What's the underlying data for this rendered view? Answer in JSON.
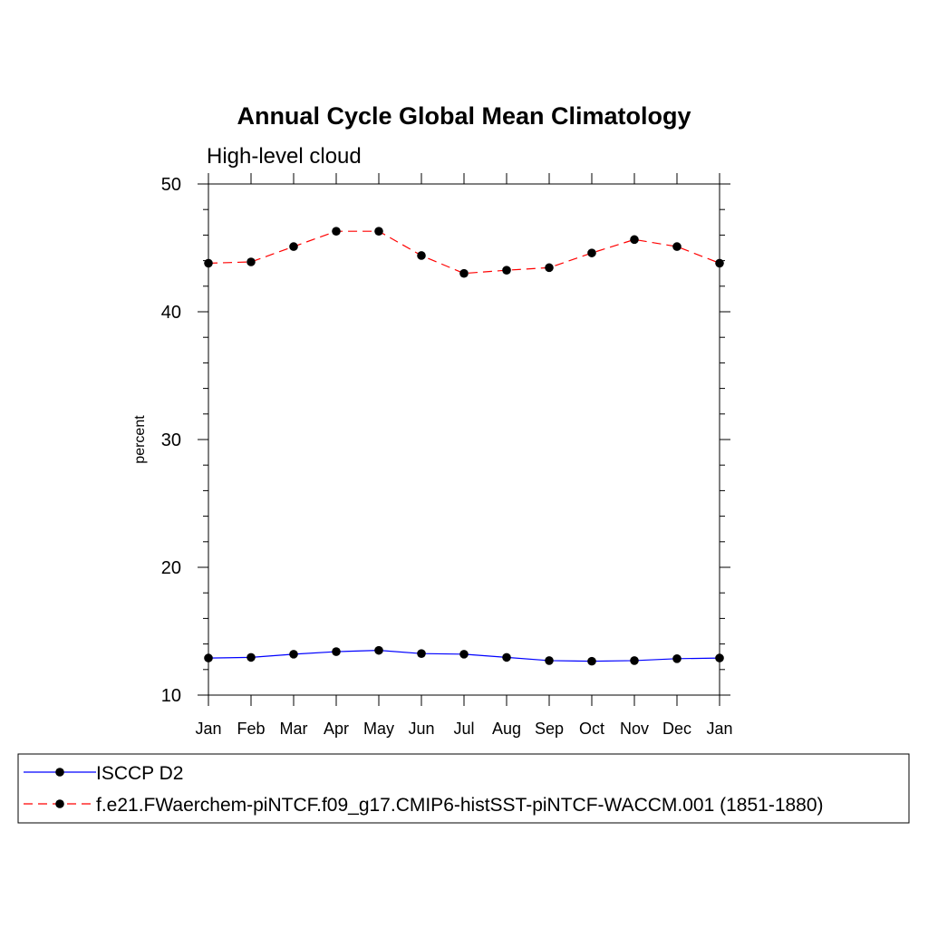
{
  "chart_data": {
    "type": "line",
    "title": "Annual Cycle Global Mean Climatology",
    "subtitle": "High-level cloud",
    "xlabel": "",
    "ylabel": "percent",
    "ylim": [
      10,
      50
    ],
    "yticks": [
      10,
      20,
      30,
      40,
      50
    ],
    "categories": [
      "Jan",
      "Feb",
      "Mar",
      "Apr",
      "May",
      "Jun",
      "Jul",
      "Aug",
      "Sep",
      "Oct",
      "Nov",
      "Dec",
      "Jan"
    ],
    "series": [
      {
        "name": "ISCCP D2",
        "color": "#0000ff",
        "dash": "solid",
        "values": [
          12.9,
          12.95,
          13.2,
          13.4,
          13.5,
          13.25,
          13.2,
          12.95,
          12.7,
          12.65,
          12.7,
          12.85,
          12.9
        ]
      },
      {
        "name": "f.e21.FWaerchem-piNTCF.f09_g17.CMIP6-histSST-piNTCF-WACCM.001 (1851-1880)",
        "color": "#ff0000",
        "dash": "dashed",
        "values": [
          43.8,
          43.9,
          45.1,
          46.3,
          46.3,
          44.4,
          43.0,
          43.25,
          43.45,
          44.6,
          45.65,
          45.1,
          43.8
        ]
      }
    ],
    "legend_position": "bottom"
  }
}
